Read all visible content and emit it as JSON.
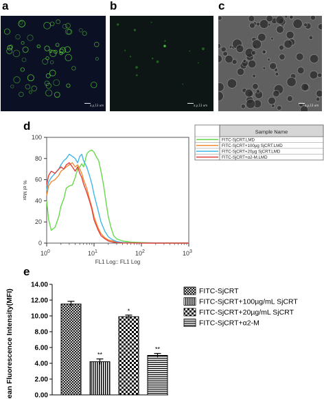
{
  "panels": {
    "a": {
      "label": "a",
      "scale_text": "a,y,13 um"
    },
    "b": {
      "label": "b",
      "scale_text": "a,y,13 um"
    },
    "c": {
      "label": "c",
      "scale_text": "a,y,13 um"
    },
    "d": {
      "label": "d"
    },
    "e": {
      "label": "e"
    }
  },
  "colors": {
    "green": "#66d94a",
    "orange": "#f08a35",
    "cyan": "#3fb7e8",
    "red": "#e0413c"
  },
  "chart_data": [
    {
      "type": "line",
      "panel": "d",
      "title": "",
      "xlabel": "FL1 Log:: FL1 Log",
      "ylabel": "% of Max",
      "xscale": "log",
      "xlim": [
        1,
        1000
      ],
      "ylim": [
        0,
        100
      ],
      "xticks": [
        "10^0",
        "10^1",
        "10^2",
        "10^3"
      ],
      "yticks": [
        0,
        20,
        40,
        60,
        80,
        100
      ],
      "legend_header": "Sample Name",
      "legend_position": "right",
      "series": [
        {
          "name": "FITC-SjCRT.LMD",
          "color": "#66d94a",
          "x": [
            1.0,
            1.1,
            1.25,
            1.5,
            1.8,
            2.0,
            2.3,
            2.6,
            3.0,
            3.5,
            4.0,
            4.5,
            5.0,
            5.5,
            6.0,
            6.5,
            7.0,
            7.5,
            8.0,
            9.0,
            10.0,
            11.0,
            12.5,
            14.0,
            16.0,
            18.0,
            20.0,
            23.0,
            26.0,
            30.0,
            40.0,
            60.0,
            100.0,
            200.0,
            1000.0
          ],
          "y": [
            40,
            22,
            12,
            15,
            25,
            35,
            42,
            52,
            54,
            55,
            62,
            70,
            72,
            75,
            72,
            78,
            84,
            86,
            87,
            88,
            86,
            82,
            78,
            68,
            54,
            38,
            25,
            14,
            7,
            4,
            2,
            1,
            0.5,
            0.2,
            0
          ]
        },
        {
          "name": "FITC-SjCRT+100µg SjCRT.LMD",
          "color": "#f08a35",
          "x": [
            1.0,
            1.1,
            1.25,
            1.5,
            1.8,
            2.0,
            2.3,
            2.6,
            3.0,
            3.5,
            4.0,
            4.5,
            5.0,
            5.5,
            6.0,
            7.0,
            8.0,
            9.0,
            10.0,
            12.0,
            14.0,
            17.0,
            20.0,
            25.0,
            30.0,
            40.0,
            60.0,
            100.0,
            1000.0
          ],
          "y": [
            45,
            54,
            58,
            60,
            64,
            68,
            70,
            72,
            74,
            76,
            72,
            74,
            70,
            66,
            60,
            52,
            42,
            34,
            25,
            15,
            9,
            5,
            3,
            2,
            1,
            0.5,
            0.2,
            0.1,
            0
          ]
        },
        {
          "name": "FITC-SjCRT+20µg SjCRT.LMD",
          "color": "#3fb7e8",
          "x": [
            1.0,
            1.1,
            1.25,
            1.5,
            1.8,
            2.0,
            2.3,
            2.6,
            3.0,
            3.5,
            4.0,
            4.5,
            5.0,
            5.5,
            6.0,
            7.0,
            8.0,
            9.0,
            10.0,
            12.0,
            14.0,
            17.0,
            20.0,
            25.0,
            30.0,
            40.0,
            60.0,
            100.0,
            1000.0
          ],
          "y": [
            50,
            58,
            62,
            66,
            70,
            74,
            78,
            80,
            84,
            82,
            80,
            76,
            82,
            84,
            78,
            72,
            64,
            56,
            46,
            32,
            20,
            11,
            6,
            3,
            1.5,
            0.6,
            0.2,
            0.1,
            0
          ]
        },
        {
          "name": "FITC-SjCRT+α2-M.LMD",
          "color": "#e0413c",
          "x": [
            1.0,
            1.1,
            1.25,
            1.5,
            1.8,
            2.0,
            2.3,
            2.6,
            3.0,
            3.5,
            4.0,
            4.5,
            5.0,
            5.5,
            6.0,
            7.0,
            8.0,
            9.0,
            10.0,
            12.0,
            14.0,
            17.0,
            20.0,
            25.0,
            30.0,
            40.0,
            60.0,
            100.0,
            1000.0
          ],
          "y": [
            55,
            64,
            68,
            66,
            70,
            72,
            70,
            74,
            76,
            72,
            68,
            72,
            66,
            62,
            56,
            48,
            40,
            32,
            22,
            13,
            7,
            4,
            2,
            1,
            0.5,
            0.2,
            0.1,
            0,
            0
          ]
        }
      ]
    },
    {
      "type": "bar",
      "panel": "e",
      "title": "",
      "xlabel": "",
      "ylabel": "Mean Fluorescence Intensity(MFI)",
      "ylim": [
        0,
        14
      ],
      "yticks": [
        "0.00",
        "2.00",
        "4.00",
        "6.00",
        "8.00",
        "10.00",
        "12.00",
        "14.00"
      ],
      "categories": [
        "FITC-SjCRT",
        "FITC-SjCRT+100µg/mL SjCRT",
        "FITC-SjCRT+20µg/mL SjCRT",
        "FITC-SjCRT+α2-M"
      ],
      "values": [
        11.5,
        4.2,
        9.9,
        5.0
      ],
      "errors": [
        0.35,
        0.35,
        0.2,
        0.25
      ],
      "significance": [
        "",
        "**",
        "*",
        "**"
      ],
      "patterns": [
        "crosshatch",
        "vertical",
        "checker",
        "horizontal"
      ],
      "legend_position": "right"
    }
  ]
}
